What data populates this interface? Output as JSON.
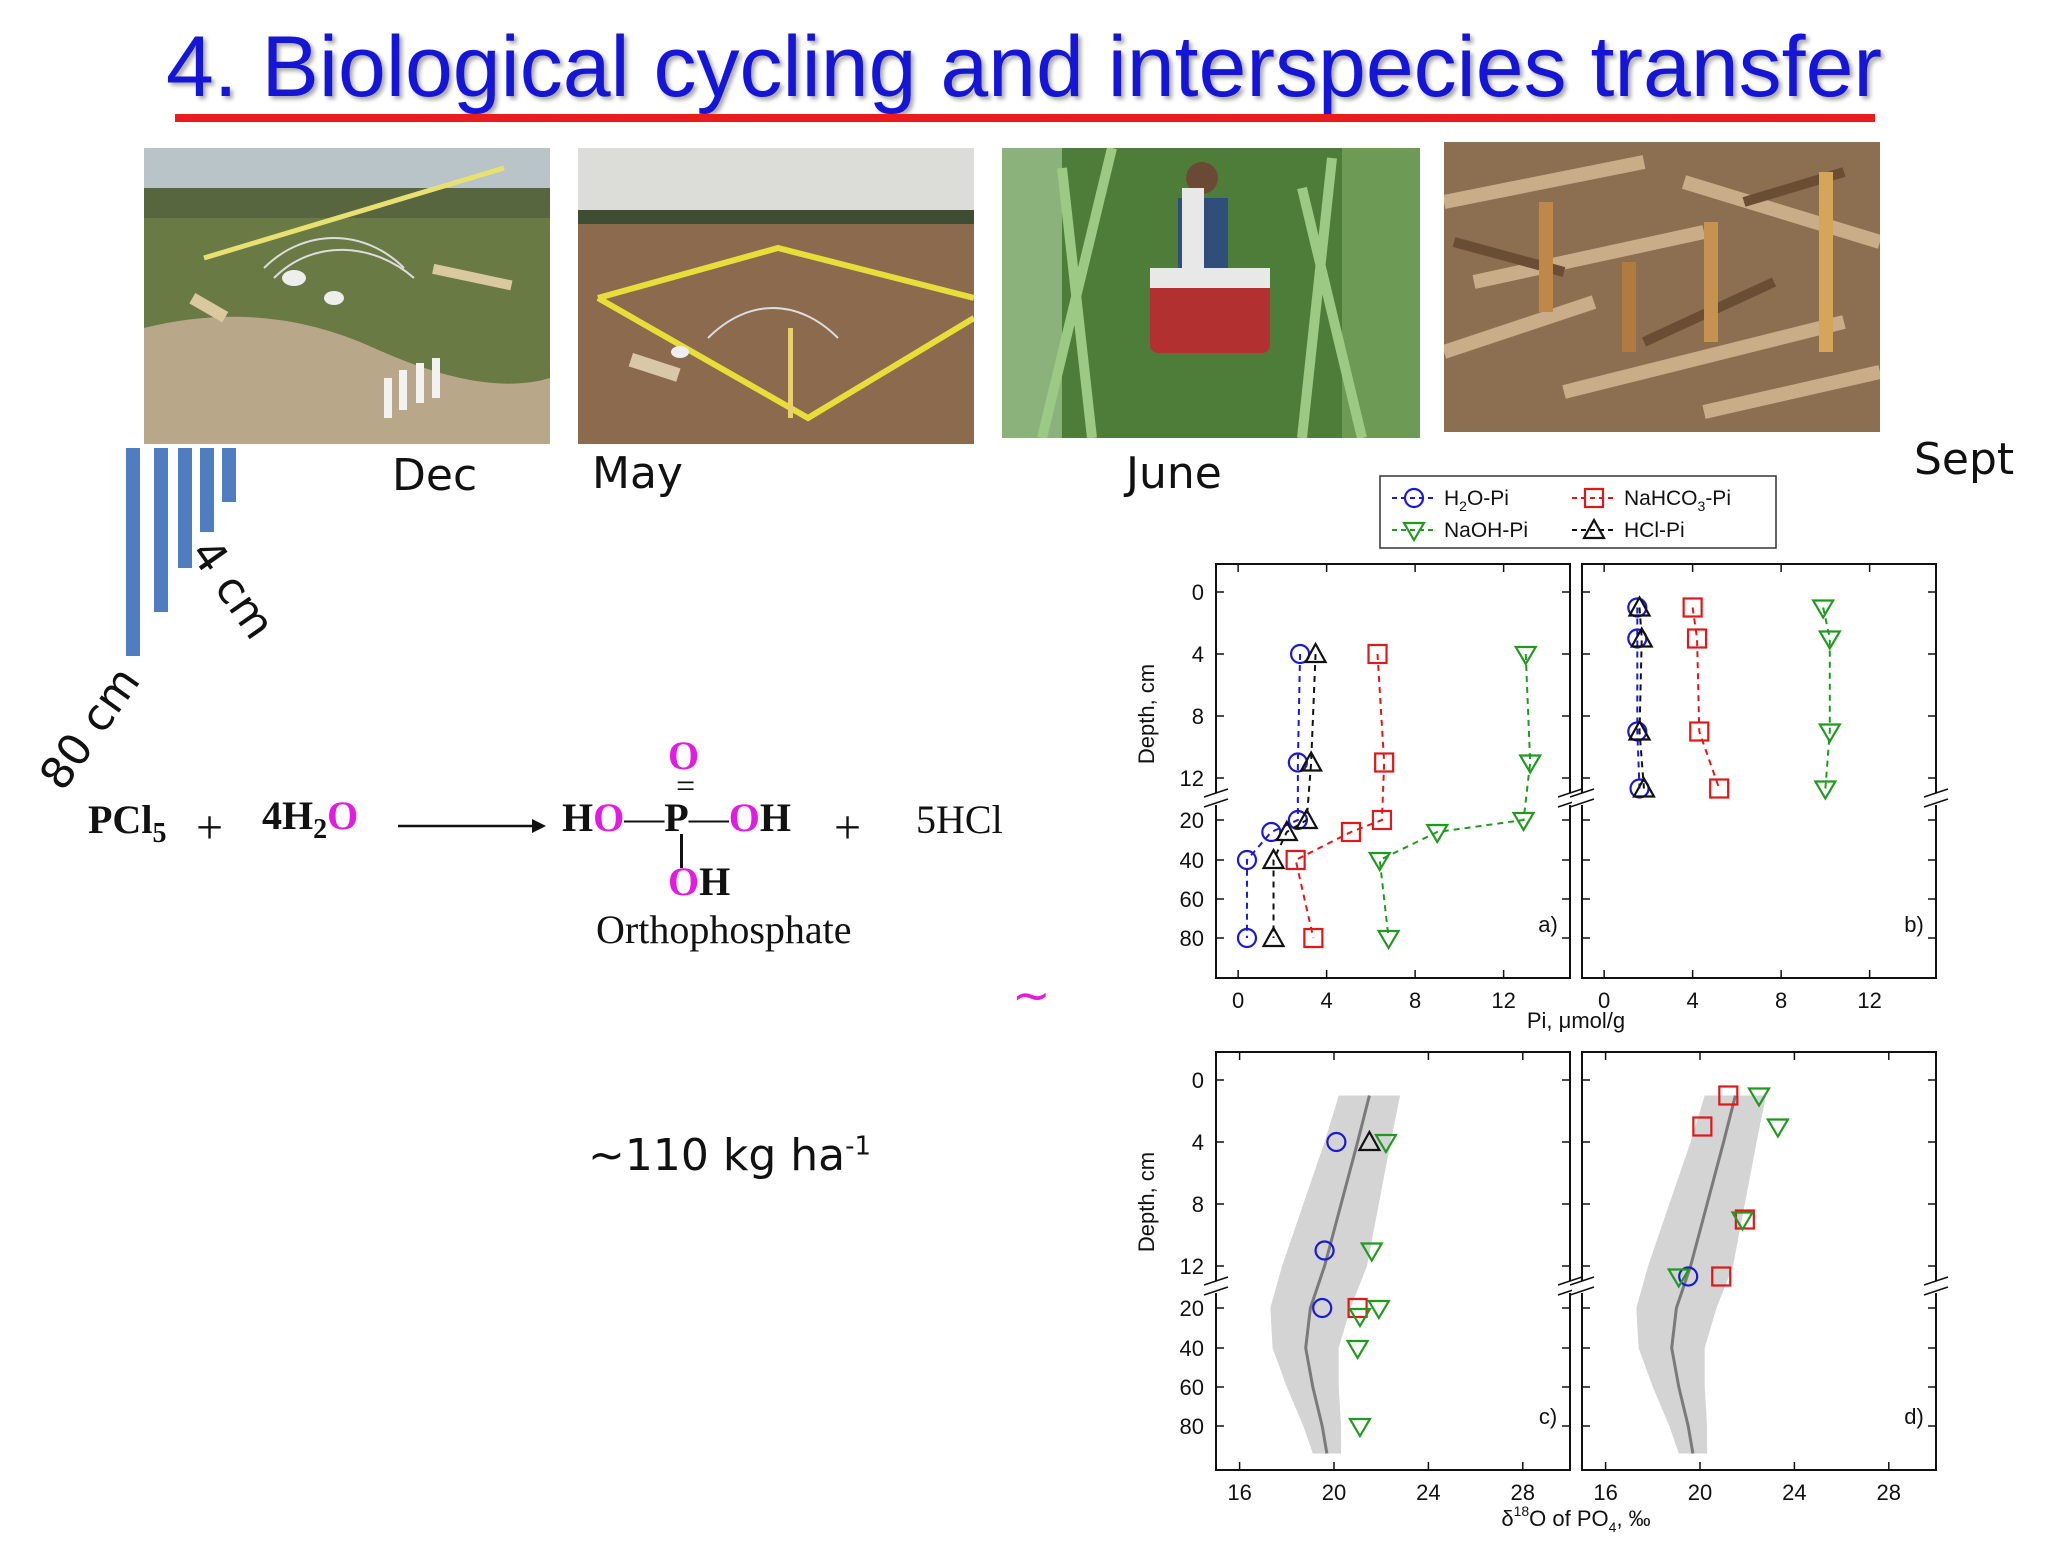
{
  "title": "4. Biological cycling and interspecies transfer",
  "photos": [
    {
      "caption": "Dec"
    },
    {
      "caption": "May"
    },
    {
      "caption": "June"
    },
    {
      "caption": "Sept"
    }
  ],
  "depth_labels": {
    "shallow": "4 cm",
    "deep": "80 cm"
  },
  "reaction": {
    "reactant1": "PCl",
    "reactant1_sub": "5",
    "plus1": "+",
    "water_coef": "4H",
    "water_sub": "2",
    "water_o": "O",
    "top_o": "O",
    "double_bond": "=",
    "h_left": "H",
    "o_left": "O",
    "bond_left": "—",
    "p": "P",
    "bond_right": "—",
    "o_right": "O",
    "h_right": "H",
    "bottom_o": "O",
    "bottom_h": "H",
    "plus2": "+",
    "product2": "5HCl",
    "product_name": "Orthophosphate"
  },
  "application_rate": {
    "text": "~110 kg ha",
    "superscript": "-1"
  },
  "tilde_mark": "~",
  "legend": [
    {
      "name": "H2O-Pi",
      "label_main": "H",
      "label_sub": "2",
      "label_rest": "O-Pi",
      "color": "#1a1ad6",
      "marker": "circle"
    },
    {
      "name": "NaHCO3-Pi",
      "label_main": "NaHCO",
      "label_sub": "3",
      "label_rest": "-Pi",
      "color": "#e01818",
      "marker": "square"
    },
    {
      "name": "NaOH-Pi",
      "label_main": "NaOH-Pi",
      "label_sub": "",
      "label_rest": "",
      "color": "#1f9a1f",
      "marker": "triangle-down"
    },
    {
      "name": "HCl-Pi",
      "label_main": "HCl-Pi",
      "label_sub": "",
      "label_rest": "",
      "color": "#111111",
      "marker": "triangle-up"
    }
  ],
  "chart_data": [
    {
      "panel": "a)",
      "type": "line",
      "ylabel": "Depth, cm",
      "xlabel": "Pi, μmol/g",
      "xlim": [
        -1,
        15
      ],
      "xticks": [
        "0",
        "4",
        "8",
        "12"
      ],
      "yticks_upper": [
        "0",
        "4",
        "8",
        "12"
      ],
      "yticks_lower": [
        "20",
        "40",
        "60",
        "80"
      ],
      "depth_scale": "broken axis: 0-12 cm linear, 20-80 cm compressed",
      "series": [
        {
          "name": "H2O-Pi",
          "depth": [
            4,
            11,
            20,
            26,
            40,
            80
          ],
          "values": [
            2.8,
            2.7,
            2.7,
            1.5,
            0.4,
            0.4
          ]
        },
        {
          "name": "NaHCO3-Pi",
          "depth": [
            4,
            11,
            20,
            26,
            40,
            80
          ],
          "values": [
            6.3,
            6.6,
            6.5,
            5.1,
            2.6,
            3.4
          ]
        },
        {
          "name": "NaOH-Pi",
          "depth": [
            4,
            11,
            20,
            26,
            40,
            80
          ],
          "values": [
            13.0,
            13.2,
            12.9,
            9.0,
            6.4,
            6.8
          ]
        },
        {
          "name": "HCl-Pi",
          "depth": [
            4,
            11,
            20,
            26,
            40,
            80
          ],
          "values": [
            3.5,
            3.3,
            3.1,
            2.2,
            1.6,
            1.6
          ]
        }
      ]
    },
    {
      "panel": "b)",
      "type": "line",
      "xlim": [
        -1,
        15
      ],
      "xticks": [
        "0",
        "4",
        "8",
        "12"
      ],
      "series": [
        {
          "name": "H2O-Pi",
          "depth": [
            1,
            3,
            9,
            14
          ],
          "values": [
            1.5,
            1.5,
            1.5,
            1.6
          ]
        },
        {
          "name": "NaHCO3-Pi",
          "depth": [
            1,
            3,
            9,
            14
          ],
          "values": [
            4.0,
            4.2,
            4.3,
            5.2
          ]
        },
        {
          "name": "NaOH-Pi",
          "depth": [
            1,
            3,
            9,
            14
          ],
          "values": [
            9.9,
            10.2,
            10.2,
            10.0
          ]
        },
        {
          "name": "HCl-Pi",
          "depth": [
            1,
            3,
            9,
            14
          ],
          "values": [
            1.6,
            1.7,
            1.6,
            1.8
          ]
        }
      ]
    },
    {
      "panel": "c)",
      "type": "scatter",
      "ylabel": "Depth, cm",
      "xlabel": "δ18O of PO4, ‰",
      "xlabel_main": "δ",
      "xlabel_sup": "18",
      "xlabel_mid": "O of PO",
      "xlabel_sub": "4",
      "xlabel_end": ", ‰",
      "xlim": [
        15,
        30
      ],
      "xticks": [
        "16",
        "20",
        "24",
        "28"
      ],
      "band": "equilibrium range (grey band) with mean line",
      "series": [
        {
          "name": "H2O-Pi",
          "depth": [
            4,
            11,
            20
          ],
          "values": [
            20.1,
            19.6,
            19.5
          ]
        },
        {
          "name": "NaHCO3-Pi",
          "depth": [
            20
          ],
          "values": [
            21.0
          ]
        },
        {
          "name": "NaOH-Pi",
          "depth": [
            4,
            11,
            20,
            24,
            40,
            80
          ],
          "values": [
            22.2,
            21.6,
            21.9,
            21.1,
            21.0,
            21.1
          ]
        },
        {
          "name": "HCl-Pi",
          "depth": [
            4
          ],
          "values": [
            21.5
          ]
        }
      ]
    },
    {
      "panel": "d)",
      "type": "scatter",
      "xlim": [
        15,
        30
      ],
      "xticks": [
        "16",
        "20",
        "24",
        "28"
      ],
      "series": [
        {
          "name": "H2O-Pi",
          "depth": [
            14
          ],
          "values": [
            19.5
          ]
        },
        {
          "name": "NaHCO3-Pi",
          "depth": [
            1,
            3,
            9,
            14
          ],
          "values": [
            21.2,
            20.1,
            21.9,
            20.9
          ]
        },
        {
          "name": "NaOH-Pi",
          "depth": [
            1,
            3,
            9,
            14
          ],
          "values": [
            22.5,
            23.3,
            21.8,
            19.1
          ]
        }
      ]
    }
  ]
}
